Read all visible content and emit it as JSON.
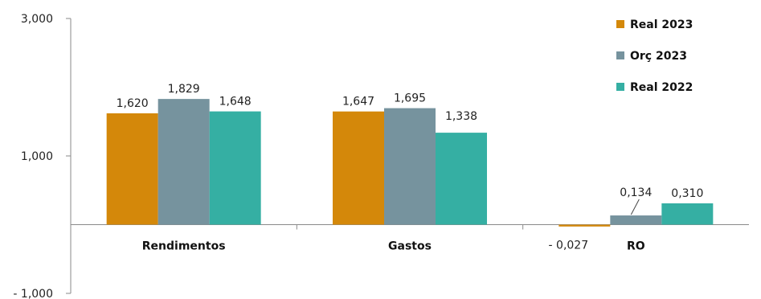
{
  "chart_data": {
    "type": "bar",
    "categories": [
      "Rendimentos",
      "Gastos",
      "RO"
    ],
    "series": [
      {
        "name": "Real 2023",
        "values": [
          1.62,
          1.647,
          -0.027
        ],
        "labels": [
          "1,620",
          "1,647",
          "- 0,027"
        ],
        "color": "#D4880A"
      },
      {
        "name": "Orç 2023",
        "values": [
          1.829,
          1.695,
          0.134
        ],
        "labels": [
          "1,829",
          "1,695",
          "0,134"
        ],
        "color": "#76939E"
      },
      {
        "name": "Real 2022",
        "values": [
          1.648,
          1.338,
          0.31
        ],
        "labels": [
          "1,648",
          "1,338",
          "0,310"
        ],
        "color": "#35AFA3"
      }
    ],
    "y_ticks": [
      {
        "value": 3.0,
        "label": "3,000"
      },
      {
        "value": 1.0,
        "label": "1,000"
      },
      {
        "value": -1.0,
        "label": "- 1,000"
      }
    ],
    "ylim": [
      -1.0,
      3.0
    ],
    "legend_position": "top-right",
    "grid": false
  }
}
